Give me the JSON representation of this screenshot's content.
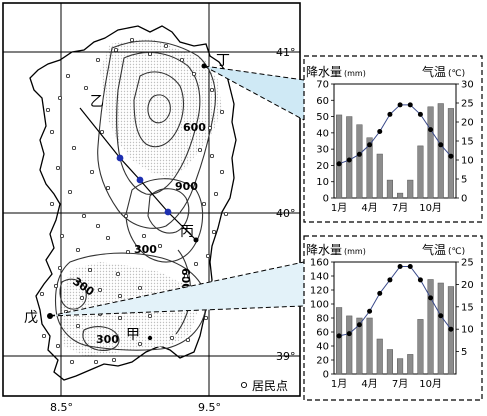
{
  "map": {
    "lat_labels": [
      "41°",
      "40°",
      "39°"
    ],
    "lon_labels": [
      "8.5°",
      "9.5°"
    ],
    "contour_labels": [
      "600",
      "900",
      "300",
      "600",
      "300",
      "300"
    ],
    "point_labels": {
      "yi": "乙",
      "ding": "丁",
      "bing": "丙",
      "wu": "戊",
      "jia": "甲"
    },
    "legend_label": "居民点",
    "colors": {
      "transect_point": "#1d2fb0",
      "settlement": "#ffffff",
      "line": "#000000"
    }
  },
  "chart_data": [
    {
      "type": "bar",
      "station": "丁",
      "categories": [
        "1",
        "2",
        "3",
        "4",
        "5",
        "6",
        "7",
        "8",
        "9",
        "10",
        "11",
        "12"
      ],
      "x_tick_labels": [
        "1月",
        "4月",
        "7月",
        "10月"
      ],
      "series": [
        {
          "name": "降水量",
          "values": [
            51,
            50,
            45,
            37,
            27,
            11,
            3,
            11,
            32,
            56,
            58,
            55
          ]
        },
        {
          "name": "气温",
          "values": [
            9,
            10,
            11.5,
            14,
            17.5,
            22,
            24.5,
            24.5,
            22,
            18,
            14,
            11
          ]
        }
      ],
      "left_axis_label": "降水量",
      "left_axis_unit": "(mm)",
      "right_axis_label": "气温",
      "right_axis_unit": "(℃)",
      "left_ticks": [
        "70",
        "60",
        "50",
        "40",
        "30",
        "20",
        "10",
        "0"
      ],
      "right_ticks": [
        "30",
        "25",
        "20",
        "15",
        "10",
        "5",
        "0"
      ],
      "ylim_left": [
        0,
        70
      ],
      "ylim_right": [
        0,
        30
      ]
    },
    {
      "type": "bar",
      "station": "戊",
      "categories": [
        "1",
        "2",
        "3",
        "4",
        "5",
        "6",
        "7",
        "8",
        "9",
        "10",
        "11",
        "12"
      ],
      "x_tick_labels": [
        "1月",
        "4月",
        "7月",
        "10月"
      ],
      "series": [
        {
          "name": "降水量",
          "values": [
            95,
            83,
            80,
            80,
            50,
            35,
            22,
            28,
            78,
            135,
            130,
            125
          ]
        },
        {
          "name": "气温",
          "values": [
            8.5,
            9,
            11,
            14,
            18,
            21,
            24,
            24,
            21,
            17,
            13,
            10
          ]
        }
      ],
      "left_axis_label": "降水量",
      "left_axis_unit": "(mm)",
      "right_axis_label": "气温",
      "right_axis_unit": "(℃)",
      "left_ticks": [
        "160",
        "140",
        "120",
        "100",
        "80",
        "60",
        "40",
        "20",
        "0"
      ],
      "right_ticks": [
        "25",
        "20",
        "15",
        "10",
        "5"
      ],
      "ylim_left": [
        0,
        160
      ],
      "ylim_right": [
        0,
        25
      ]
    }
  ]
}
